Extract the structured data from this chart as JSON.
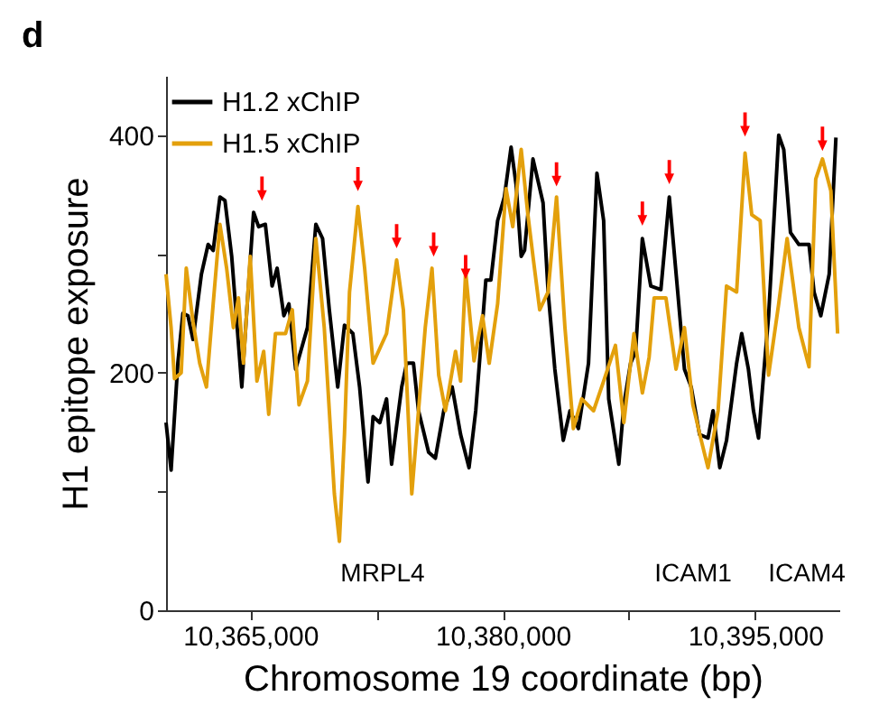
{
  "chart_data": {
    "type": "line",
    "xlabel": "Chromosome 19 coordinate (bp)",
    "ylabel": "H1 epitope exposure",
    "xlim": [
      10360000,
      10400000
    ],
    "xticks": [
      {
        "value": 10365000,
        "label": "10,365,000"
      },
      {
        "value": 10372500,
        "label": null
      },
      {
        "value": 10380000,
        "label": "10,380,000"
      },
      {
        "value": 10387500,
        "label": null
      },
      {
        "value": 10395000,
        "label": "10,395,000"
      }
    ],
    "ylim": [
      0,
      450
    ],
    "yticks": [
      0,
      {
        "value": 100,
        "label": null
      },
      200,
      {
        "value": 300,
        "label": null
      },
      400
    ],
    "grid": false,
    "legend": "top left",
    "marker": "none",
    "line_style": "solid",
    "series": [
      {
        "name": "H1.2 xChIP",
        "color": "#000000",
        "x": [
          10360000,
          10360300,
          10360700,
          10361000,
          10361300,
          10361600,
          10362100,
          10362500,
          10362800,
          10363200,
          10363500,
          10363900,
          10364500,
          10364800,
          10365200,
          10365500,
          10365900,
          10366300,
          10366600,
          10367000,
          10367300,
          10367700,
          10368000,
          10368400,
          10368900,
          10369300,
          10369700,
          10370200,
          10370600,
          10371100,
          10371500,
          10372000,
          10372300,
          10372700,
          10373100,
          10373400,
          10374000,
          10374300,
          10374700,
          10375000,
          10375600,
          10376000,
          10376500,
          10377000,
          10377500,
          10378000,
          10378400,
          10379000,
          10379300,
          10379700,
          10380100,
          10380500,
          10380800,
          10381100,
          10381300,
          10381800,
          10382400,
          10382700,
          10383100,
          10383600,
          10384000,
          10384500,
          10385100,
          10385600,
          10386000,
          10386300,
          10386900,
          10387200,
          10387600,
          10387900,
          10388300,
          10388800,
          10389400,
          10389900,
          10390400,
          10390800,
          10391200,
          10391700,
          10392200,
          10392500,
          10392900,
          10393300,
          10393900,
          10394200,
          10394600,
          10394900,
          10395200,
          10395500,
          10395800,
          10396400,
          10396700,
          10397100,
          10397600,
          10398200,
          10398500,
          10398900,
          10399400,
          10399800
        ],
        "values": [
          158,
          118,
          208,
          250,
          248,
          228,
          283,
          308,
          303,
          348,
          345,
          298,
          188,
          253,
          335,
          323,
          325,
          273,
          288,
          248,
          258,
          203,
          218,
          238,
          325,
          313,
          253,
          188,
          240,
          233,
          188,
          108,
          163,
          158,
          178,
          123,
          188,
          208,
          208,
          168,
          133,
          128,
          168,
          188,
          148,
          120,
          168,
          278,
          278,
          328,
          348,
          390,
          358,
          298,
          303,
          380,
          343,
          268,
          203,
          143,
          168,
          153,
          208,
          368,
          328,
          178,
          123,
          173,
          208,
          218,
          313,
          273,
          270,
          348,
          268,
          203,
          188,
          148,
          145,
          168,
          120,
          143,
          208,
          233,
          203,
          168,
          145,
          198,
          248,
          400,
          388,
          318,
          308,
          308,
          268,
          248,
          283,
          398
        ]
      },
      {
        "name": "H1.5 xChIP",
        "color": "#e3a00c",
        "x": [
          10360000,
          10360300,
          10360500,
          10360900,
          10361200,
          10361600,
          10362000,
          10362400,
          10362800,
          10363200,
          10363600,
          10364000,
          10364300,
          10364600,
          10365000,
          10365400,
          10365800,
          10366100,
          10366500,
          10367100,
          10367500,
          10367900,
          10368400,
          10368900,
          10369400,
          10370000,
          10370300,
          10370600,
          10370900,
          10371400,
          10371800,
          10372300,
          10373100,
          10373700,
          10374100,
          10374600,
          10375000,
          10375400,
          10375800,
          10376200,
          10376600,
          10377200,
          10377500,
          10377800,
          10378300,
          10378800,
          10379200,
          10379700,
          10380200,
          10380600,
          10381100,
          10381500,
          10381800,
          10382200,
          10382700,
          10383200,
          10383700,
          10384200,
          10384700,
          10385400,
          10386000,
          10386700,
          10387200,
          10387800,
          10388300,
          10388700,
          10389000,
          10389700,
          10390300,
          10390800,
          10391300,
          10391800,
          10392200,
          10392800,
          10393300,
          10393900,
          10394400,
          10394800,
          10395300,
          10395800,
          10396400,
          10396900,
          10397600,
          10398200,
          10398600,
          10399000,
          10399500,
          10399900
        ],
        "values": [
          283,
          238,
          195,
          200,
          288,
          243,
          208,
          188,
          258,
          325,
          288,
          238,
          263,
          208,
          298,
          193,
          218,
          165,
          233,
          233,
          253,
          173,
          193,
          313,
          238,
          98,
          58,
          148,
          268,
          340,
          288,
          208,
          233,
          295,
          253,
          98,
          168,
          238,
          288,
          198,
          168,
          218,
          193,
          285,
          210,
          248,
          208,
          258,
          355,
          323,
          388,
          333,
          298,
          253,
          268,
          348,
          238,
          153,
          178,
          168,
          193,
          223,
          158,
          233,
          183,
          213,
          263,
          263,
          203,
          238,
          173,
          143,
          120,
          168,
          273,
          268,
          385,
          333,
          328,
          198,
          258,
          313,
          238,
          205,
          363,
          380,
          353,
          233
        ]
      },
      {
        "type": "scatter",
        "marker": "triangle",
        "color": "#ff0000",
        "x": [
          10365700,
          10371400,
          10373700,
          10375900,
          10377800,
          10383200,
          10388300,
          10389900,
          10394400,
          10399000
        ],
        "values": [
          355,
          363,
          315,
          308,
          289,
          367,
          334,
          369,
          409,
          397
        ]
      }
    ],
    "annotations": [
      "d",
      "MRPL4",
      "ICAM1",
      "ICAM4"
    ]
  }
}
